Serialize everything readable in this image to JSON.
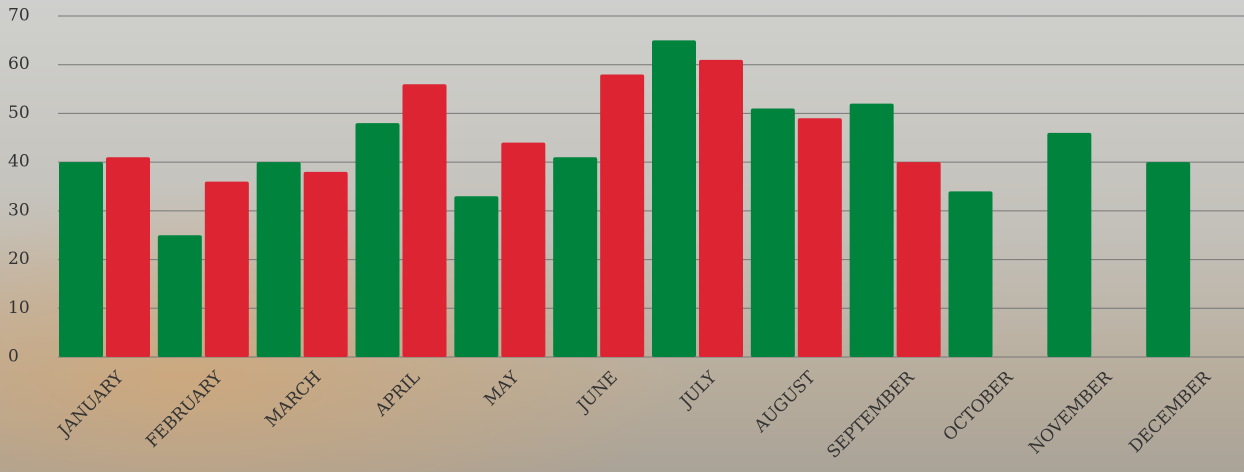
{
  "chart_data": {
    "type": "bar",
    "categories": [
      "JANUARY",
      "FEBRUARY",
      "MARCH",
      "APRIL",
      "MAY",
      "JUNE",
      "JULY",
      "AUGUST",
      "SEPTEMBER",
      "OCTOBER",
      "NOVEMBER",
      "DECEMBER"
    ],
    "series": [
      {
        "color": "#00843d",
        "values": [
          40,
          25,
          40,
          48,
          33,
          41,
          65,
          51,
          52,
          34,
          46,
          40
        ]
      },
      {
        "color": "#dc2432",
        "values": [
          41,
          36,
          38,
          56,
          44,
          58,
          61,
          49,
          40,
          null,
          null,
          null
        ]
      }
    ],
    "ylim": [
      0,
      70
    ],
    "yticks": [
      0,
      10,
      20,
      30,
      40,
      50,
      60,
      70
    ],
    "grid": true
  }
}
